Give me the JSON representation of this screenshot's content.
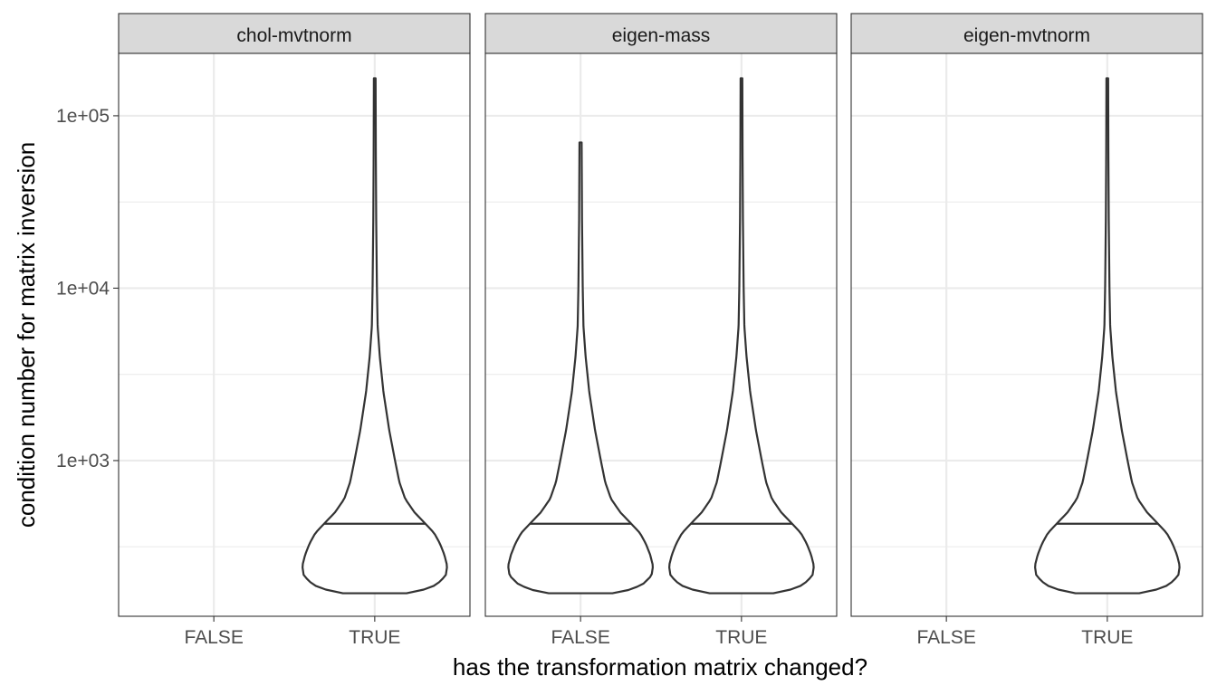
{
  "chart_data": {
    "type": "violin",
    "facets": [
      "chol-mvtnorm",
      "eigen-mass",
      "eigen-mvtnorm"
    ],
    "categories": [
      "FALSE",
      "TRUE"
    ],
    "xlabel": "has the transformation matrix changed?",
    "ylabel": "condition number for matrix inversion",
    "y_scale": "log10",
    "ylim": [
      125,
      230000
    ],
    "y_ticks": [
      1000,
      10000,
      100000
    ],
    "y_tick_labels": [
      "1e+03",
      "1e+04",
      "1e+05"
    ],
    "grid": true,
    "panels": [
      {
        "facet": "chol-mvtnorm",
        "violins": [
          {
            "category": "TRUE",
            "min": 170,
            "max": 165000,
            "median": 430,
            "profile": [
              [
                170,
                0.44
              ],
              [
                175,
                0.62
              ],
              [
                190,
                0.85
              ],
              [
                215,
                0.98
              ],
              [
                245,
                1.0
              ],
              [
                285,
                0.96
              ],
              [
                330,
                0.9
              ],
              [
                380,
                0.82
              ],
              [
                430,
                0.7
              ],
              [
                500,
                0.55
              ],
              [
                600,
                0.42
              ],
              [
                750,
                0.34
              ],
              [
                1000,
                0.28
              ],
              [
                1500,
                0.2
              ],
              [
                2500,
                0.12
              ],
              [
                4000,
                0.07
              ],
              [
                6000,
                0.04
              ],
              [
                10000,
                0.03
              ],
              [
                25000,
                0.02
              ],
              [
                60000,
                0.015
              ],
              [
                165000,
                0.012
              ]
            ]
          }
        ]
      },
      {
        "facet": "eigen-mass",
        "violins": [
          {
            "category": "FALSE",
            "min": 170,
            "max": 70000,
            "median": 430,
            "profile": [
              [
                170,
                0.44
              ],
              [
                175,
                0.62
              ],
              [
                190,
                0.85
              ],
              [
                215,
                0.98
              ],
              [
                245,
                1.0
              ],
              [
                285,
                0.96
              ],
              [
                330,
                0.9
              ],
              [
                380,
                0.82
              ],
              [
                430,
                0.7
              ],
              [
                500,
                0.55
              ],
              [
                600,
                0.42
              ],
              [
                750,
                0.34
              ],
              [
                1000,
                0.28
              ],
              [
                1500,
                0.2
              ],
              [
                2500,
                0.12
              ],
              [
                4000,
                0.07
              ],
              [
                6000,
                0.04
              ],
              [
                10000,
                0.03
              ],
              [
                25000,
                0.02
              ],
              [
                70000,
                0.015
              ]
            ]
          },
          {
            "category": "TRUE",
            "min": 170,
            "max": 165000,
            "median": 430,
            "profile": [
              [
                170,
                0.44
              ],
              [
                175,
                0.62
              ],
              [
                190,
                0.85
              ],
              [
                215,
                0.98
              ],
              [
                245,
                1.0
              ],
              [
                285,
                0.96
              ],
              [
                330,
                0.9
              ],
              [
                380,
                0.82
              ],
              [
                430,
                0.7
              ],
              [
                500,
                0.55
              ],
              [
                600,
                0.42
              ],
              [
                750,
                0.34
              ],
              [
                1000,
                0.28
              ],
              [
                1500,
                0.2
              ],
              [
                2500,
                0.12
              ],
              [
                4000,
                0.07
              ],
              [
                6000,
                0.04
              ],
              [
                10000,
                0.03
              ],
              [
                25000,
                0.02
              ],
              [
                60000,
                0.015
              ],
              [
                165000,
                0.012
              ]
            ]
          }
        ]
      },
      {
        "facet": "eigen-mvtnorm",
        "violins": [
          {
            "category": "TRUE",
            "min": 170,
            "max": 165000,
            "median": 430,
            "profile": [
              [
                170,
                0.44
              ],
              [
                175,
                0.62
              ],
              [
                190,
                0.85
              ],
              [
                215,
                0.98
              ],
              [
                245,
                1.0
              ],
              [
                285,
                0.96
              ],
              [
                330,
                0.9
              ],
              [
                380,
                0.82
              ],
              [
                430,
                0.7
              ],
              [
                500,
                0.55
              ],
              [
                600,
                0.42
              ],
              [
                750,
                0.34
              ],
              [
                1000,
                0.28
              ],
              [
                1500,
                0.2
              ],
              [
                2500,
                0.12
              ],
              [
                4000,
                0.07
              ],
              [
                6000,
                0.04
              ],
              [
                10000,
                0.03
              ],
              [
                25000,
                0.02
              ],
              [
                60000,
                0.015
              ],
              [
                165000,
                0.012
              ]
            ]
          }
        ]
      }
    ]
  }
}
